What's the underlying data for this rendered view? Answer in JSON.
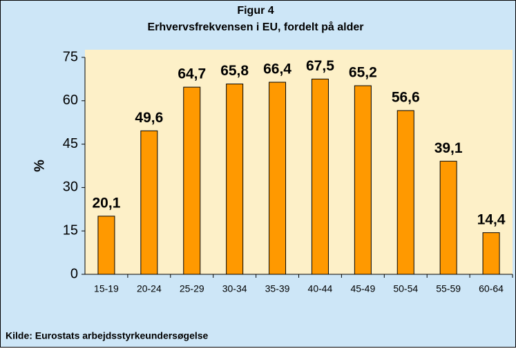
{
  "chart_data": {
    "type": "bar",
    "title": "Figur 4",
    "subtitle": "Erhvervsfrekvensen i EU, fordelt på alder",
    "y_label": "%",
    "source": "Kilde: Eurostats arbejdsstyrkeundersøgelse",
    "categories": [
      "15-19",
      "20-24",
      "25-29",
      "30-34",
      "35-39",
      "40-44",
      "45-49",
      "50-54",
      "55-59",
      "60-64"
    ],
    "values": [
      20.1,
      49.6,
      64.7,
      65.8,
      66.4,
      67.5,
      65.2,
      56.6,
      39.1,
      14.4
    ],
    "value_labels": [
      "20,1",
      "49,6",
      "64,7",
      "65,8",
      "66,4",
      "67,5",
      "65,2",
      "56,6",
      "39,1",
      "14,4"
    ],
    "color": "#ff9900",
    "ylim": [
      0,
      75
    ],
    "yticks": [
      0,
      15,
      30,
      45,
      60,
      75
    ]
  }
}
